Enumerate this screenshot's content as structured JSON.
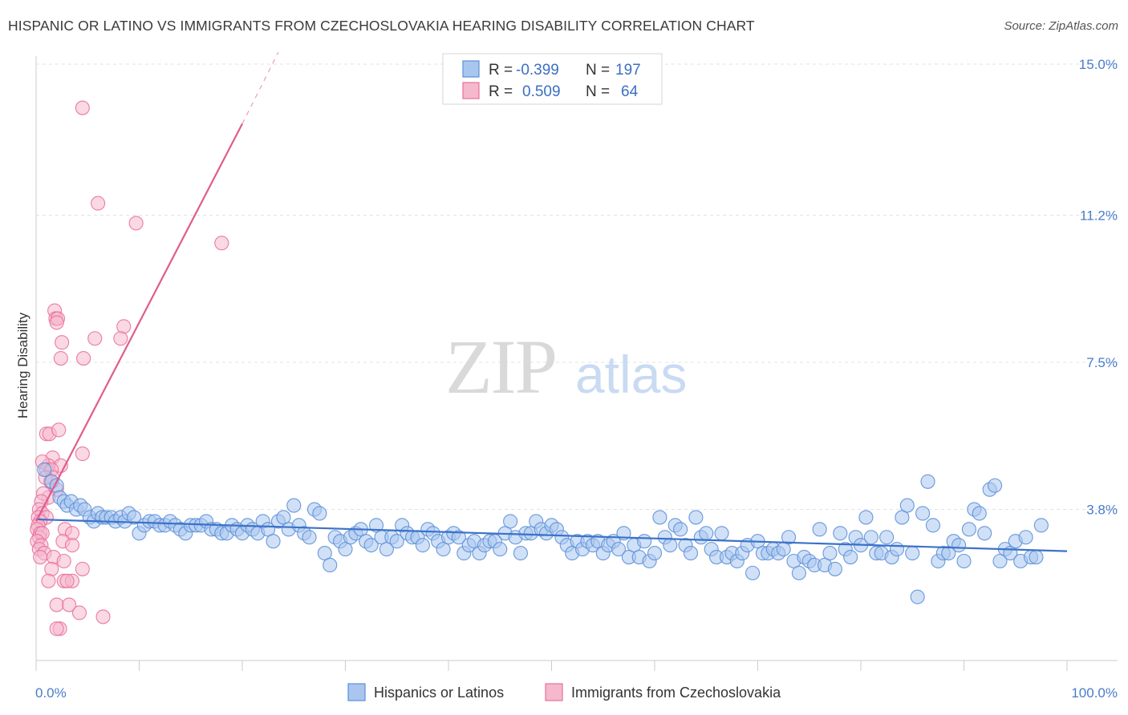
{
  "title": "HISPANIC OR LATINO VS IMMIGRANTS FROM CZECHOSLOVAKIA HEARING DISABILITY CORRELATION CHART",
  "source": "Source: ZipAtlas.com",
  "watermark": {
    "zip": "ZIP",
    "atlas": "atlas"
  },
  "colors": {
    "blue": "#5b8fd9",
    "blue_fill": "#a9c6ef",
    "pink": "#e8709a",
    "pink_fill": "#f5b8cd",
    "blue_line": "#3b72c9",
    "pink_line": "#e05c8c"
  },
  "legend": {
    "rows": [
      {
        "r_label": "R =",
        "r_value": "-0.399",
        "n_label": "N =",
        "n_value": "197"
      },
      {
        "r_label": "R =",
        "r_value": "0.509",
        "n_label": "N =",
        "n_value": "64"
      }
    ]
  },
  "bottom_legend": [
    "Hispanics or Latinos",
    "Immigrants from Czechoslovakia"
  ],
  "chart_data": {
    "type": "scatter",
    "title": "HISPANIC OR LATINO VS IMMIGRANTS FROM CZECHOSLOVAKIA HEARING DISABILITY CORRELATION CHART",
    "xlabel": "",
    "ylabel": "Hearing Disability",
    "xlim": [
      0,
      100
    ],
    "ylim": [
      0,
      15.0
    ],
    "x_tick_labels": [
      "0.0%",
      "100.0%"
    ],
    "y_tick_values": [
      3.8,
      7.5,
      11.2,
      15.0
    ],
    "y_tick_labels": [
      "3.8%",
      "7.5%",
      "11.2%",
      "15.0%"
    ],
    "grid": "horizontal dashed",
    "legend_position": "top-center",
    "series": [
      {
        "name": "Hispanics or Latinos",
        "R": -0.399,
        "N": 197,
        "trend": {
          "x": [
            0,
            100
          ],
          "y": [
            3.55,
            2.75
          ]
        },
        "points": [
          [
            0.8,
            4.8
          ],
          [
            1.5,
            4.5
          ],
          [
            2.0,
            4.4
          ],
          [
            2.3,
            4.1
          ],
          [
            2.7,
            4.0
          ],
          [
            3.0,
            3.9
          ],
          [
            3.4,
            4.0
          ],
          [
            3.9,
            3.8
          ],
          [
            4.3,
            3.9
          ],
          [
            4.7,
            3.8
          ],
          [
            5.2,
            3.6
          ],
          [
            5.6,
            3.5
          ],
          [
            6.0,
            3.7
          ],
          [
            6.4,
            3.6
          ],
          [
            6.8,
            3.6
          ],
          [
            7.3,
            3.6
          ],
          [
            7.7,
            3.5
          ],
          [
            8.2,
            3.6
          ],
          [
            8.6,
            3.5
          ],
          [
            9.0,
            3.7
          ],
          [
            9.5,
            3.6
          ],
          [
            10.0,
            3.2
          ],
          [
            10.5,
            3.4
          ],
          [
            11.0,
            3.5
          ],
          [
            11.5,
            3.5
          ],
          [
            12.0,
            3.4
          ],
          [
            12.5,
            3.4
          ],
          [
            13.0,
            3.5
          ],
          [
            13.5,
            3.4
          ],
          [
            14.0,
            3.3
          ],
          [
            14.5,
            3.2
          ],
          [
            15.0,
            3.4
          ],
          [
            15.5,
            3.4
          ],
          [
            16.0,
            3.4
          ],
          [
            16.5,
            3.5
          ],
          [
            17.0,
            3.3
          ],
          [
            17.5,
            3.3
          ],
          [
            18.0,
            3.2
          ],
          [
            18.5,
            3.2
          ],
          [
            19.0,
            3.4
          ],
          [
            19.5,
            3.3
          ],
          [
            20.0,
            3.2
          ],
          [
            20.5,
            3.4
          ],
          [
            21.0,
            3.3
          ],
          [
            21.5,
            3.2
          ],
          [
            22.0,
            3.5
          ],
          [
            22.5,
            3.3
          ],
          [
            23.0,
            3.0
          ],
          [
            23.5,
            3.5
          ],
          [
            24.0,
            3.6
          ],
          [
            24.5,
            3.3
          ],
          [
            25.0,
            3.9
          ],
          [
            25.5,
            3.4
          ],
          [
            26.0,
            3.2
          ],
          [
            26.5,
            3.1
          ],
          [
            27.0,
            3.8
          ],
          [
            27.5,
            3.7
          ],
          [
            28.0,
            2.7
          ],
          [
            28.5,
            2.4
          ],
          [
            29.0,
            3.1
          ],
          [
            29.5,
            3.0
          ],
          [
            30.0,
            2.8
          ],
          [
            30.5,
            3.1
          ],
          [
            31.0,
            3.2
          ],
          [
            31.5,
            3.3
          ],
          [
            32.0,
            3.0
          ],
          [
            32.5,
            2.9
          ],
          [
            33.0,
            3.4
          ],
          [
            33.5,
            3.1
          ],
          [
            34.0,
            2.8
          ],
          [
            34.5,
            3.1
          ],
          [
            35.0,
            3.0
          ],
          [
            35.5,
            3.4
          ],
          [
            36.0,
            3.2
          ],
          [
            36.5,
            3.1
          ],
          [
            37.0,
            3.1
          ],
          [
            37.5,
            2.9
          ],
          [
            38.0,
            3.3
          ],
          [
            38.5,
            3.2
          ],
          [
            39.0,
            3.0
          ],
          [
            39.5,
            2.8
          ],
          [
            40.0,
            3.1
          ],
          [
            40.5,
            3.2
          ],
          [
            41.0,
            3.1
          ],
          [
            41.5,
            2.7
          ],
          [
            42.0,
            2.9
          ],
          [
            42.5,
            3.0
          ],
          [
            43.0,
            2.7
          ],
          [
            43.5,
            2.9
          ],
          [
            44.0,
            3.0
          ],
          [
            44.5,
            3.0
          ],
          [
            45.0,
            2.8
          ],
          [
            45.5,
            3.2
          ],
          [
            46.0,
            3.5
          ],
          [
            46.5,
            3.1
          ],
          [
            47.0,
            2.7
          ],
          [
            47.5,
            3.2
          ],
          [
            48.0,
            3.2
          ],
          [
            48.5,
            3.5
          ],
          [
            49.0,
            3.3
          ],
          [
            49.5,
            3.2
          ],
          [
            50.0,
            3.4
          ],
          [
            50.5,
            3.3
          ],
          [
            51.0,
            3.1
          ],
          [
            51.5,
            2.9
          ],
          [
            52.0,
            2.7
          ],
          [
            52.5,
            3.0
          ],
          [
            53.0,
            2.8
          ],
          [
            53.5,
            3.0
          ],
          [
            54.0,
            2.9
          ],
          [
            54.5,
            3.0
          ],
          [
            55.0,
            2.7
          ],
          [
            55.5,
            2.9
          ],
          [
            56.0,
            3.0
          ],
          [
            56.5,
            2.8
          ],
          [
            57.0,
            3.2
          ],
          [
            57.5,
            2.6
          ],
          [
            58.0,
            2.9
          ],
          [
            58.5,
            2.6
          ],
          [
            59.0,
            3.0
          ],
          [
            59.5,
            2.5
          ],
          [
            60.0,
            2.7
          ],
          [
            60.5,
            3.6
          ],
          [
            61.0,
            3.1
          ],
          [
            61.5,
            2.9
          ],
          [
            62.0,
            3.4
          ],
          [
            62.5,
            3.3
          ],
          [
            63.0,
            2.9
          ],
          [
            63.5,
            2.7
          ],
          [
            64.0,
            3.6
          ],
          [
            64.5,
            3.1
          ],
          [
            65.0,
            3.2
          ],
          [
            65.5,
            2.8
          ],
          [
            66.0,
            2.6
          ],
          [
            66.5,
            3.2
          ],
          [
            67.0,
            2.6
          ],
          [
            67.5,
            2.7
          ],
          [
            68.0,
            2.5
          ],
          [
            68.5,
            2.7
          ],
          [
            69.0,
            2.9
          ],
          [
            69.5,
            2.2
          ],
          [
            70.0,
            3.0
          ],
          [
            70.5,
            2.7
          ],
          [
            71.0,
            2.7
          ],
          [
            71.5,
            2.8
          ],
          [
            72.0,
            2.7
          ],
          [
            72.5,
            2.8
          ],
          [
            73.0,
            3.1
          ],
          [
            73.5,
            2.5
          ],
          [
            74.0,
            2.2
          ],
          [
            74.5,
            2.6
          ],
          [
            75.0,
            2.5
          ],
          [
            75.5,
            2.4
          ],
          [
            76.0,
            3.3
          ],
          [
            76.5,
            2.4
          ],
          [
            77.0,
            2.7
          ],
          [
            77.5,
            2.3
          ],
          [
            78.0,
            3.2
          ],
          [
            78.5,
            2.8
          ],
          [
            79.0,
            2.6
          ],
          [
            79.5,
            3.1
          ],
          [
            80.0,
            2.9
          ],
          [
            80.5,
            3.6
          ],
          [
            81.0,
            3.1
          ],
          [
            81.5,
            2.7
          ],
          [
            82.0,
            2.7
          ],
          [
            82.5,
            3.1
          ],
          [
            83.0,
            2.6
          ],
          [
            83.5,
            2.8
          ],
          [
            84.0,
            3.6
          ],
          [
            84.5,
            3.9
          ],
          [
            85.0,
            2.7
          ],
          [
            85.5,
            1.6
          ],
          [
            86.0,
            3.7
          ],
          [
            86.5,
            4.5
          ],
          [
            87.0,
            3.4
          ],
          [
            87.5,
            2.5
          ],
          [
            88.0,
            2.7
          ],
          [
            88.5,
            2.7
          ],
          [
            89.0,
            3.0
          ],
          [
            89.5,
            2.9
          ],
          [
            90.0,
            2.5
          ],
          [
            90.5,
            3.3
          ],
          [
            91.0,
            3.8
          ],
          [
            91.5,
            3.7
          ],
          [
            92.0,
            3.2
          ],
          [
            92.5,
            4.3
          ],
          [
            93.0,
            4.4
          ],
          [
            93.5,
            2.5
          ],
          [
            94.0,
            2.8
          ],
          [
            94.5,
            2.7
          ],
          [
            95.0,
            3.0
          ],
          [
            95.5,
            2.5
          ],
          [
            96.0,
            3.1
          ],
          [
            96.5,
            2.6
          ],
          [
            97.0,
            2.6
          ],
          [
            97.5,
            3.4
          ]
        ]
      },
      {
        "name": "Immigrants from Czechoslovakia",
        "R": 0.509,
        "N": 64,
        "trend": {
          "x": [
            0,
            20
          ],
          "y": [
            3.5,
            13.5
          ],
          "dashed_extension": {
            "x": [
              20,
              23.5
            ],
            "y": [
              13.5,
              15.3
            ]
          }
        },
        "points": [
          [
            4.5,
            13.9
          ],
          [
            6.0,
            11.5
          ],
          [
            9.7,
            11.0
          ],
          [
            18.0,
            10.5
          ],
          [
            1.8,
            8.8
          ],
          [
            1.9,
            8.6
          ],
          [
            2.1,
            8.6
          ],
          [
            2.0,
            8.5
          ],
          [
            8.5,
            8.4
          ],
          [
            8.2,
            8.1
          ],
          [
            5.7,
            8.1
          ],
          [
            2.5,
            8.0
          ],
          [
            2.4,
            7.6
          ],
          [
            4.6,
            7.6
          ],
          [
            1.0,
            5.7
          ],
          [
            1.3,
            5.7
          ],
          [
            2.2,
            5.8
          ],
          [
            4.5,
            5.2
          ],
          [
            1.6,
            5.1
          ],
          [
            1.2,
            4.9
          ],
          [
            0.6,
            5.0
          ],
          [
            2.4,
            4.9
          ],
          [
            1.0,
            4.8
          ],
          [
            1.5,
            4.8
          ],
          [
            1.4,
            4.5
          ],
          [
            1.6,
            4.6
          ],
          [
            0.9,
            4.6
          ],
          [
            2.0,
            4.3
          ],
          [
            1.2,
            4.1
          ],
          [
            0.7,
            4.2
          ],
          [
            0.5,
            4.0
          ],
          [
            0.3,
            3.8
          ],
          [
            0.6,
            3.7
          ],
          [
            0.2,
            3.6
          ],
          [
            1.0,
            3.6
          ],
          [
            0.4,
            3.5
          ],
          [
            0.2,
            3.4
          ],
          [
            0.1,
            3.3
          ],
          [
            0.4,
            3.2
          ],
          [
            0.3,
            3.1
          ],
          [
            0.6,
            3.2
          ],
          [
            0.1,
            3.0
          ],
          [
            2.8,
            3.3
          ],
          [
            3.5,
            3.2
          ],
          [
            0.5,
            2.9
          ],
          [
            2.6,
            3.0
          ],
          [
            3.5,
            2.9
          ],
          [
            0.3,
            2.8
          ],
          [
            0.8,
            2.7
          ],
          [
            0.4,
            2.6
          ],
          [
            1.7,
            2.6
          ],
          [
            2.7,
            2.5
          ],
          [
            4.5,
            2.3
          ],
          [
            1.5,
            2.3
          ],
          [
            2.7,
            2.0
          ],
          [
            3.5,
            2.0
          ],
          [
            1.2,
            2.0
          ],
          [
            3.0,
            2.0
          ],
          [
            2.0,
            1.4
          ],
          [
            3.2,
            1.4
          ],
          [
            6.5,
            1.1
          ],
          [
            2.3,
            0.8
          ],
          [
            2.0,
            0.8
          ],
          [
            4.2,
            1.2
          ]
        ]
      }
    ]
  }
}
